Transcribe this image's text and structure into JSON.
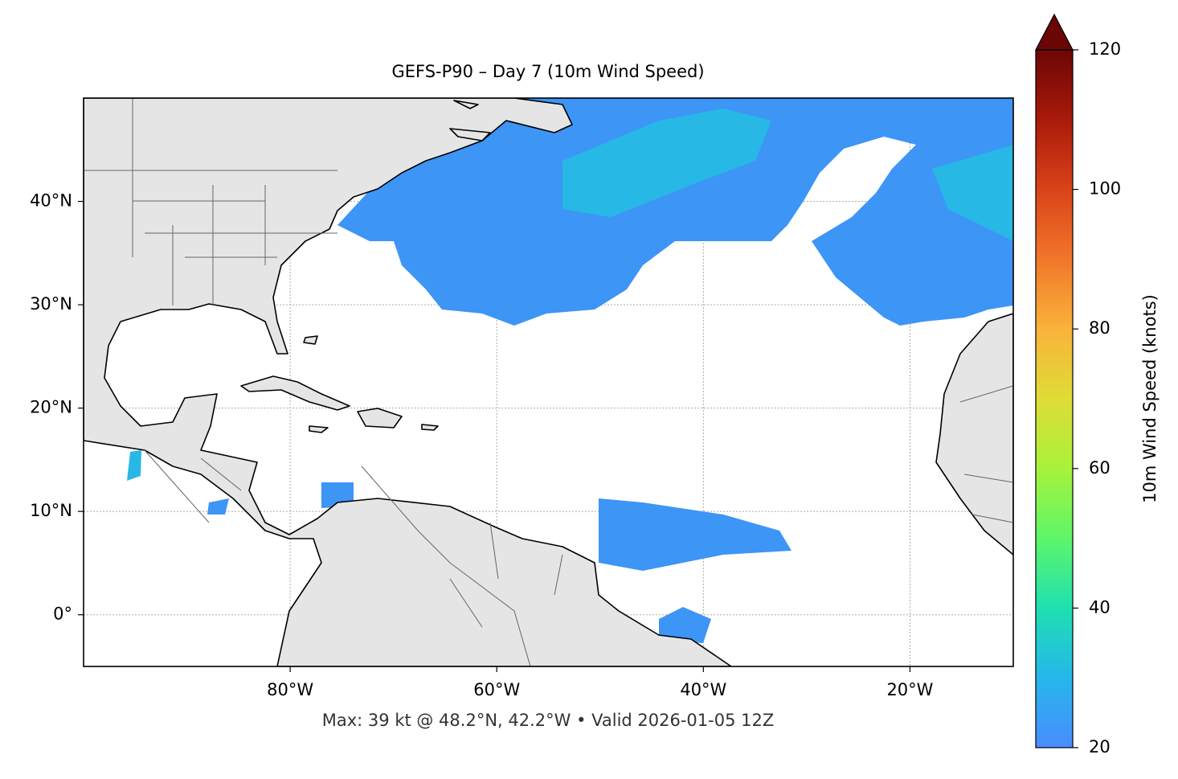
{
  "chart_data": {
    "type": "map",
    "title": "GEFS-P90 – Day 7 (10m Wind Speed)",
    "xlim": [
      -100,
      -10
    ],
    "ylim": [
      -5,
      50
    ],
    "xticks": [
      {
        "value": -80,
        "label": "80°W"
      },
      {
        "value": -60,
        "label": "60°W"
      },
      {
        "value": -40,
        "label": "40°W"
      },
      {
        "value": -20,
        "label": "20°W"
      }
    ],
    "yticks": [
      {
        "value": 0,
        "label": "0°"
      },
      {
        "value": 10,
        "label": "10°N"
      },
      {
        "value": 20,
        "label": "20°N"
      },
      {
        "value": 30,
        "label": "30°N"
      },
      {
        "value": 40,
        "label": "40°N"
      }
    ],
    "grid": true,
    "colorbar": {
      "label": "10m Wind Speed (knots)",
      "lim": [
        20,
        120
      ],
      "ticks": [
        20,
        40,
        60,
        80,
        100,
        120
      ],
      "colors": [
        "#4a8cff",
        "#25b7ea",
        "#1fe0b0",
        "#5ef56a",
        "#a8f23a",
        "#dfdc36",
        "#f9b33a",
        "#f2762a",
        "#d9431a",
        "#a91a0a",
        "#6b0606"
      ]
    },
    "footnote": "Max: 39 kt @ 48.2°N, 42.2°W • Valid 2026-01-05 12Z"
  }
}
